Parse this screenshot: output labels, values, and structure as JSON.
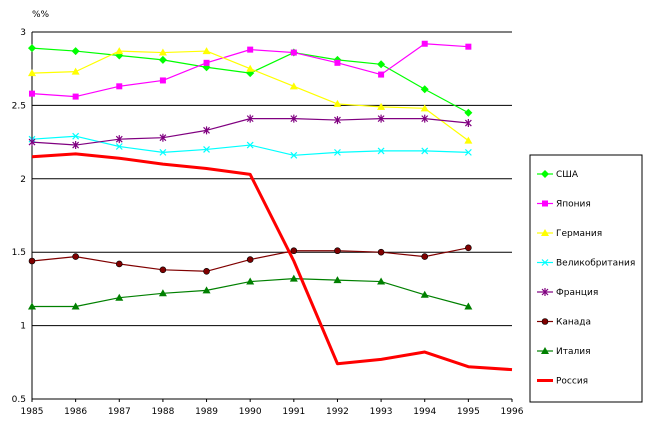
{
  "chart_data": {
    "type": "line",
    "ylabel": "%%",
    "xlabel": "",
    "title": "",
    "x": [
      1985,
      1986,
      1987,
      1988,
      1989,
      1990,
      1991,
      1992,
      1993,
      1994,
      1995,
      1996
    ],
    "xlim": [
      1985,
      1996
    ],
    "ylim": [
      0.5,
      3
    ],
    "y_ticks": [
      0.5,
      1,
      1.5,
      2,
      2.5,
      3
    ],
    "y_tick_labels": [
      "0.5",
      "1",
      "1.5",
      "2",
      "2.5",
      "3"
    ],
    "grid": "horizontal",
    "legend_position": "right",
    "series": [
      {
        "name": "США",
        "color": "#00ff00",
        "marker": "diamond",
        "values": [
          2.89,
          2.87,
          2.84,
          2.81,
          2.76,
          2.72,
          2.86,
          2.81,
          2.78,
          2.61,
          2.45,
          null
        ]
      },
      {
        "name": "Япония",
        "color": "#ff00ff",
        "marker": "square",
        "values": [
          2.58,
          2.56,
          2.63,
          2.67,
          2.79,
          2.88,
          2.86,
          2.79,
          2.71,
          2.92,
          2.9,
          null
        ]
      },
      {
        "name": "Германия",
        "color": "#ffff00",
        "marker": "triangle",
        "values": [
          2.72,
          2.73,
          2.87,
          2.86,
          2.87,
          2.75,
          2.63,
          2.51,
          2.49,
          2.48,
          2.26,
          null
        ]
      },
      {
        "name": "Великобритания",
        "color": "#00ffff",
        "marker": "cross",
        "values": [
          2.27,
          2.29,
          2.22,
          2.18,
          2.2,
          2.23,
          2.16,
          2.18,
          2.19,
          2.19,
          2.18,
          null
        ]
      },
      {
        "name": "Франция",
        "color": "#800080",
        "marker": "star",
        "values": [
          2.25,
          2.23,
          2.27,
          2.28,
          2.33,
          2.41,
          2.41,
          2.4,
          2.41,
          2.41,
          2.38,
          null
        ]
      },
      {
        "name": "Канада",
        "color": "#800000",
        "marker": "circle",
        "values": [
          1.44,
          1.47,
          1.42,
          1.38,
          1.37,
          1.45,
          1.51,
          1.51,
          1.5,
          1.47,
          1.53,
          null
        ]
      },
      {
        "name": "Италия",
        "color": "#008000",
        "marker": "triangle",
        "values": [
          1.13,
          1.13,
          1.19,
          1.22,
          1.24,
          1.3,
          1.32,
          1.31,
          1.3,
          1.21,
          1.13,
          null
        ]
      },
      {
        "name": "Россия",
        "color": "#ff0000",
        "marker": "none",
        "thick": true,
        "values": [
          2.15,
          2.17,
          2.14,
          2.1,
          2.07,
          2.03,
          1.44,
          0.74,
          0.77,
          0.82,
          0.72,
          0.7
        ]
      }
    ]
  }
}
